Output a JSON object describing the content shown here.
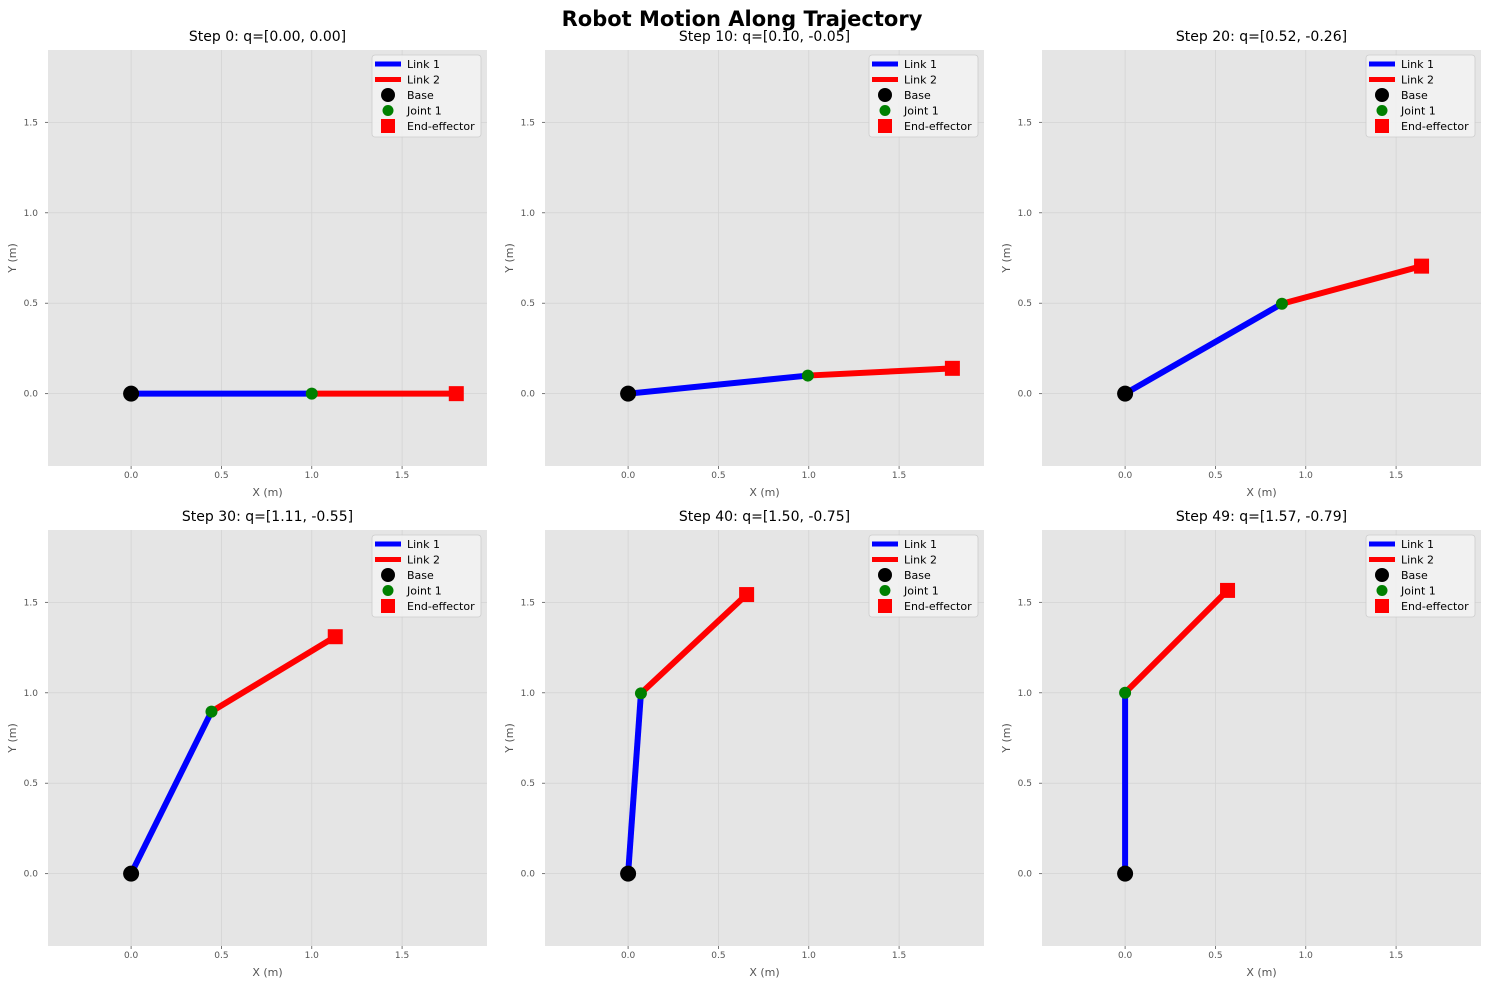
{
  "figure_title": "Robot Motion Along Trajectory",
  "colors": {
    "axes_bg": "#e5e5e5",
    "grid": "#d4d4d4",
    "link1": "#0000ff",
    "link2": "#ff0000",
    "base": "#000000",
    "joint1": "#008000",
    "end_effector": "#ff0000",
    "tick": "#555555"
  },
  "legend_entries": [
    {
      "label": "Link 1",
      "marker": "line",
      "color": "#0000ff"
    },
    {
      "label": "Link 2",
      "marker": "line",
      "color": "#ff0000"
    },
    {
      "label": "Base",
      "marker": "circle-large",
      "color": "#000000"
    },
    {
      "label": "Joint 1",
      "marker": "circle",
      "color": "#008000"
    },
    {
      "label": "End-effector",
      "marker": "square",
      "color": "#ff0000"
    }
  ],
  "chart_data": [
    {
      "type": "line",
      "title": "Step 0: q=[0.00, 0.00]",
      "xlabel": "X (m)",
      "ylabel": "Y (m)",
      "xlim": [
        -0.46,
        1.97
      ],
      "ylim": [
        -0.4,
        1.9
      ],
      "xticks": [
        "0.0",
        "0.5",
        "1.0",
        "1.5"
      ],
      "yticks": [
        "0.0",
        "0.5",
        "1.0",
        "1.5"
      ],
      "legend_position": "upper right",
      "grid": true,
      "base": [
        0,
        0
      ],
      "joint1": [
        1.0,
        0.0
      ],
      "end_effector": [
        1.8,
        0.0
      ]
    },
    {
      "type": "line",
      "title": "Step 10: q=[0.10, -0.05]",
      "xlabel": "X (m)",
      "ylabel": "Y (m)",
      "xlim": [
        -0.46,
        1.97
      ],
      "ylim": [
        -0.4,
        1.9
      ],
      "xticks": [
        "0.0",
        "0.5",
        "1.0",
        "1.5"
      ],
      "yticks": [
        "0.0",
        "0.5",
        "1.0",
        "1.5"
      ],
      "legend_position": "upper right",
      "grid": true,
      "base": [
        0,
        0
      ],
      "joint1": [
        0.995,
        0.1
      ],
      "end_effector": [
        1.795,
        0.14
      ]
    },
    {
      "type": "line",
      "title": "Step 20: q=[0.52, -0.26]",
      "xlabel": "X (m)",
      "ylabel": "Y (m)",
      "xlim": [
        -0.46,
        1.97
      ],
      "ylim": [
        -0.4,
        1.9
      ],
      "xticks": [
        "0.0",
        "0.5",
        "1.0",
        "1.5"
      ],
      "yticks": [
        "0.0",
        "0.5",
        "1.0",
        "1.5"
      ],
      "legend_position": "upper right",
      "grid": true,
      "base": [
        0,
        0
      ],
      "joint1": [
        0.868,
        0.497
      ],
      "end_effector": [
        1.641,
        0.705
      ]
    },
    {
      "type": "line",
      "title": "Step 30: q=[1.11, -0.55]",
      "xlabel": "X (m)",
      "ylabel": "Y (m)",
      "xlim": [
        -0.46,
        1.97
      ],
      "ylim": [
        -0.4,
        1.9
      ],
      "xticks": [
        "0.0",
        "0.5",
        "1.0",
        "1.5"
      ],
      "yticks": [
        "0.0",
        "0.5",
        "1.0",
        "1.5"
      ],
      "legend_position": "upper right",
      "grid": true,
      "base": [
        0,
        0
      ],
      "joint1": [
        0.445,
        0.896
      ],
      "end_effector": [
        1.13,
        1.31
      ]
    },
    {
      "type": "line",
      "title": "Step 40: q=[1.50, -0.75]",
      "xlabel": "X (m)",
      "ylabel": "Y (m)",
      "xlim": [
        -0.46,
        1.97
      ],
      "ylim": [
        -0.4,
        1.9
      ],
      "xticks": [
        "0.0",
        "0.5",
        "1.0",
        "1.5"
      ],
      "yticks": [
        "0.0",
        "0.5",
        "1.0",
        "1.5"
      ],
      "legend_position": "upper right",
      "grid": true,
      "base": [
        0,
        0
      ],
      "joint1": [
        0.071,
        0.997
      ],
      "end_effector": [
        0.656,
        1.543
      ]
    },
    {
      "type": "line",
      "title": "Step 49: q=[1.57, -0.79]",
      "xlabel": "X (m)",
      "ylabel": "Y (m)",
      "xlim": [
        -0.46,
        1.97
      ],
      "ylim": [
        -0.4,
        1.9
      ],
      "xticks": [
        "0.0",
        "0.5",
        "1.0",
        "1.5"
      ],
      "yticks": [
        "0.0",
        "0.5",
        "1.0",
        "1.5"
      ],
      "legend_position": "upper right",
      "grid": true,
      "base": [
        0,
        0
      ],
      "joint1": [
        0.0,
        1.0
      ],
      "end_effector": [
        0.567,
        1.566
      ]
    }
  ]
}
